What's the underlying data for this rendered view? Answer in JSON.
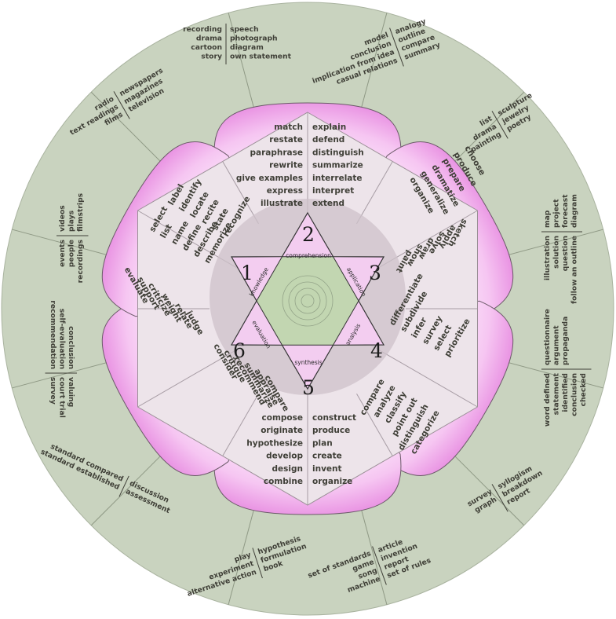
{
  "levels": [
    {
      "number": "1",
      "name": "knowledge"
    },
    {
      "number": "2",
      "name": "comprehension"
    },
    {
      "number": "3",
      "name": "application"
    },
    {
      "number": "4",
      "name": "analysis"
    },
    {
      "number": "5",
      "name": "synthesis"
    },
    {
      "number": "6",
      "name": "evaluation"
    }
  ],
  "verbs": {
    "comprehension_left": [
      "match",
      "restate",
      "paraphrase",
      "rewrite",
      "give examples",
      "express",
      "illustrate"
    ],
    "comprehension_right": [
      "explain",
      "defend",
      "distinguish",
      "summarize",
      "interrelate",
      "interpret",
      "extend"
    ],
    "application_outer": [
      "organize",
      "generalize",
      "dramatize",
      "prepare",
      "produce",
      "choose"
    ],
    "application_inner": [
      "sketch",
      "apply",
      "solve",
      "draw",
      "show",
      "paint"
    ],
    "analysis_top": [
      "differentiate",
      "subdivide",
      "infer",
      "survey",
      "select",
      "prioritize"
    ],
    "analysis_bottom": [
      "compare",
      "analyze",
      "classify",
      "point out",
      "distinguish",
      "categorize"
    ],
    "synthesis_left": [
      "compose",
      "originate",
      "hypothesize",
      "develop",
      "design",
      "combine"
    ],
    "synthesis_right": [
      "construct",
      "produce",
      "plan",
      "create",
      "invent",
      "organize"
    ],
    "evaluation_inner": [
      "judge",
      "relate",
      "weight",
      "criticize",
      "support",
      "evaluate"
    ],
    "evaluation_outer": [
      "consider",
      "critique",
      "recommend",
      "summarize",
      "appraise",
      "compare"
    ],
    "knowledge_inner": [
      "label",
      "identify",
      "locate",
      "recite",
      "state",
      "recognize"
    ],
    "knowledge_outer": [
      "select",
      "list",
      "name",
      "define",
      "describe",
      "memorize"
    ]
  },
  "outputs": [
    {
      "id": "o1",
      "left": [
        "recording",
        "drama",
        "cartoon",
        "story"
      ],
      "right": [
        "speech",
        "photograph",
        "diagram",
        "own statement"
      ]
    },
    {
      "id": "o2",
      "left": [
        "model",
        "conclusion",
        "implication from idea",
        "casual relations"
      ],
      "right": [
        "analogy",
        "outline",
        "compare",
        "summary"
      ]
    },
    {
      "id": "o3",
      "left": [
        "list",
        "drama",
        "painting"
      ],
      "right": [
        "sculpture",
        "jewelry",
        "poetry"
      ]
    },
    {
      "id": "o4",
      "left": [
        "illustration",
        "solution",
        "question",
        "follow an outline"
      ],
      "right": [
        "map",
        "project",
        "forecast",
        "diagram"
      ]
    },
    {
      "id": "o5",
      "left": [
        "word defined",
        "statement",
        "identified",
        "conclusion",
        "checked"
      ],
      "right": [
        "questionnaire",
        "argument",
        "propaganda"
      ]
    },
    {
      "id": "o6",
      "left": [
        "survey",
        "graph"
      ],
      "right": [
        "syllogism",
        "breakdown",
        "report"
      ]
    },
    {
      "id": "o7",
      "left": [
        "set of standards",
        "game",
        "song",
        "machine"
      ],
      "right": [
        "article",
        "invention",
        "report",
        "set of rules"
      ]
    },
    {
      "id": "o8",
      "left": [
        "play",
        "experiment",
        "alternative action"
      ],
      "right": [
        "hypothesis",
        "formulation",
        "book"
      ]
    },
    {
      "id": "o9",
      "left": [
        "standard compared",
        "standard established"
      ],
      "right": [
        "discussion",
        "assessment"
      ]
    },
    {
      "id": "o10",
      "left": [
        "conclusion",
        "self-evaluation",
        "recommendation"
      ],
      "right": [
        "valuing",
        "court trial",
        "survey"
      ]
    },
    {
      "id": "o11",
      "left": [
        "events",
        "people",
        "recordings"
      ],
      "right": [
        "videos",
        "plays",
        "filmstrips"
      ]
    },
    {
      "id": "o12",
      "left": [
        "radio",
        "text readings",
        "films"
      ],
      "right": [
        "newspapers",
        "magazines",
        "television"
      ]
    }
  ],
  "colors": {
    "outer_ring": "#c9d3bf",
    "petal": "#e87fe0",
    "hexagon": "#ede4ea",
    "star": "#f3cdf0",
    "center": "#bfd4ad"
  }
}
